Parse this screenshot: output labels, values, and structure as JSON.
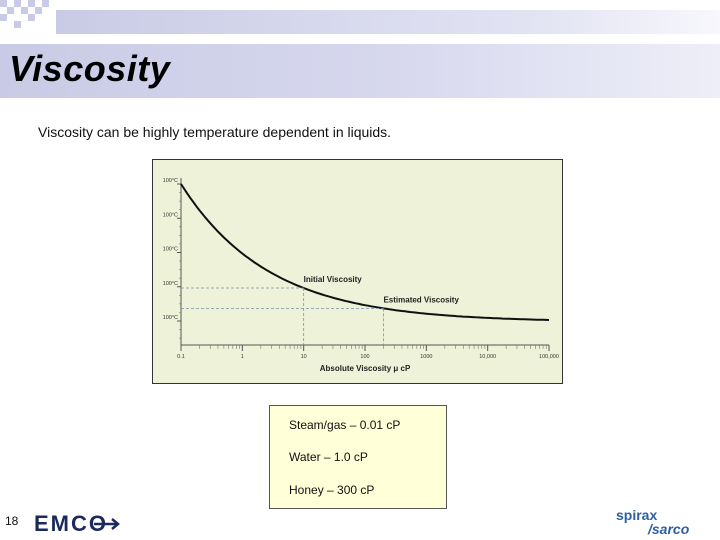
{
  "slide": {
    "title": "Viscosity",
    "subtitle": "Viscosity can be highly temperature dependent in liquids.",
    "page_number": "18",
    "notes": [
      "Steam/gas – 0.01 cP",
      "Water – 1.0 cP",
      "Honey – 300 cP"
    ]
  },
  "logos": {
    "emco": "EMCO",
    "spirax_line1": "spirax",
    "spirax_line2": "/sarco"
  },
  "colors": {
    "title_band": "#c9cbe6",
    "chart_bg": "#eef2d8",
    "notes_bg": "#ffffd8",
    "emco_navy": "#1b2a5c",
    "spirax_blue": "#2e5fa3"
  },
  "chart_data": {
    "type": "line",
    "xscale": "log",
    "xlabel": "Absolute Viscosity μ cP",
    "ylabel": "",
    "x_ticks": [
      "0.1",
      "1",
      "10",
      "100",
      "1000",
      "10,000",
      "100,000"
    ],
    "y_ticks": [
      "100°C",
      "100°C",
      "100°C",
      "100°C",
      "100°C"
    ],
    "annotations": [
      {
        "label": "Initial Viscosity",
        "x": 10
      },
      {
        "label": "Estimated Viscosity",
        "x": 200
      }
    ],
    "curve_shape": "decreasing, convex"
  }
}
